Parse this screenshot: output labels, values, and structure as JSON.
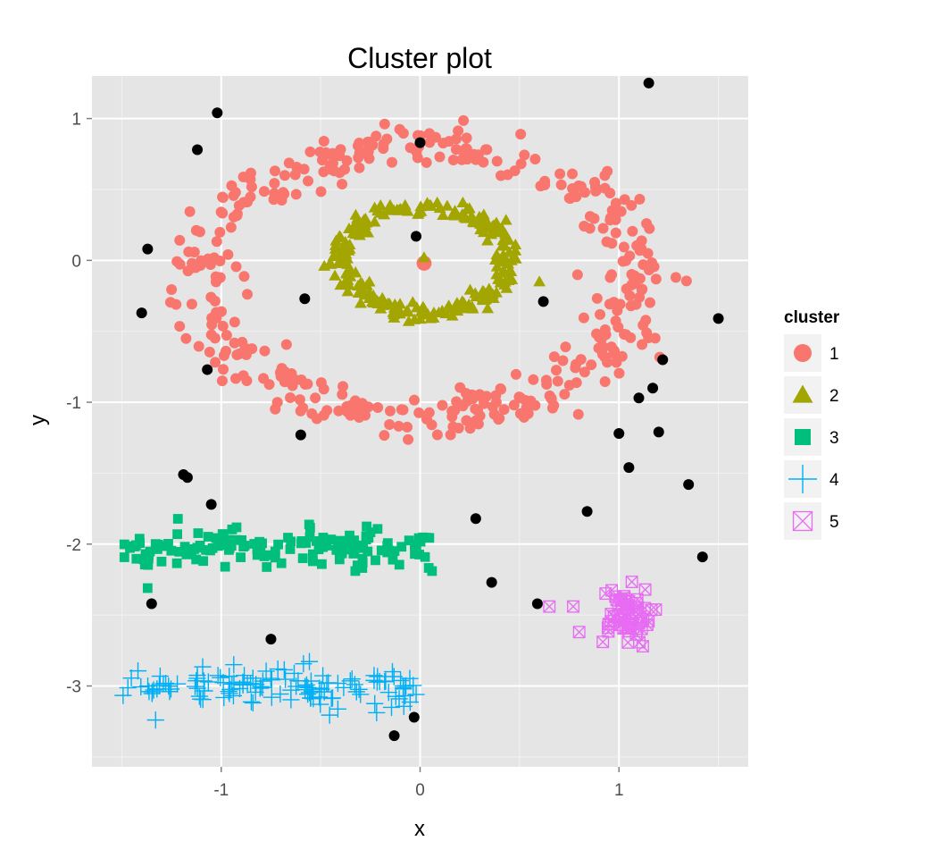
{
  "chart_data": {
    "type": "scatter",
    "title": "Cluster plot",
    "xlabel": "x",
    "ylabel": "y",
    "xlim": [
      -1.65,
      1.65
    ],
    "ylim": [
      -3.57,
      1.3
    ],
    "xticks": [
      "-1",
      "0",
      "1"
    ],
    "xtick_values": [
      -1,
      0,
      1
    ],
    "yticks": [
      "1",
      "0",
      "-1",
      "-2",
      "-3"
    ],
    "ytick_values": [
      1,
      0,
      -1,
      -2,
      -3
    ],
    "grid": true,
    "panel_background": "#e5e5e5",
    "legend": {
      "title": "cluster",
      "placement": "right",
      "entries": [
        {
          "label": "1",
          "color": "#f8766d",
          "shape": "circle"
        },
        {
          "label": "2",
          "color": "#a3a500",
          "shape": "triangle"
        },
        {
          "label": "3",
          "color": "#00bf7d",
          "shape": "square"
        },
        {
          "label": "4",
          "color": "#00b0f6",
          "shape": "plus"
        },
        {
          "label": "5",
          "color": "#e76bf3",
          "shape": "boxed-x"
        }
      ]
    },
    "noise": {
      "color": "#000000",
      "shape": "circle",
      "points": [
        [
          -1.02,
          1.04
        ],
        [
          -1.12,
          0.78
        ],
        [
          -1.37,
          0.08
        ],
        [
          -1.4,
          -0.37
        ],
        [
          -1.07,
          -0.77
        ],
        [
          -0.58,
          -0.27
        ],
        [
          0.0,
          0.83
        ],
        [
          -0.02,
          0.17
        ],
        [
          0.62,
          -0.29
        ],
        [
          1.15,
          1.25
        ],
        [
          1.5,
          -0.41
        ],
        [
          1.22,
          -0.7
        ],
        [
          1.1,
          -0.97
        ],
        [
          1.17,
          -0.9
        ],
        [
          1.0,
          -1.22
        ],
        [
          1.2,
          -1.21
        ],
        [
          1.05,
          -1.46
        ],
        [
          1.35,
          -1.58
        ],
        [
          0.84,
          -1.77
        ],
        [
          1.42,
          -2.09
        ],
        [
          -0.6,
          -1.23
        ],
        [
          -1.19,
          -1.51
        ],
        [
          -1.17,
          -1.53
        ],
        [
          -1.05,
          -1.72
        ],
        [
          -1.35,
          -2.42
        ],
        [
          0.28,
          -1.82
        ],
        [
          0.36,
          -2.27
        ],
        [
          0.59,
          -2.42
        ],
        [
          -0.75,
          -2.67
        ],
        [
          -0.03,
          -3.22
        ],
        [
          -0.13,
          -3.35
        ]
      ]
    },
    "series": [
      {
        "name": "1",
        "color": "#f8766d",
        "shape": "circle",
        "model": "ring",
        "center": [
          0.0,
          -0.15
        ],
        "radius": [
          1.1,
          0.95
        ],
        "n": 420,
        "extra_points": [
          [
            0.02,
            -0.02
          ]
        ]
      },
      {
        "name": "2",
        "color": "#a3a500",
        "shape": "triangle",
        "model": "ring",
        "center": [
          0.02,
          0.0
        ],
        "radius": [
          0.42,
          0.37
        ],
        "n": 260,
        "extra_points": [
          [
            0.02,
            0.02
          ],
          [
            0.6,
            -0.15
          ]
        ]
      },
      {
        "name": "3",
        "color": "#00bf7d",
        "shape": "square",
        "model": "band",
        "x_range": [
          -1.5,
          0.05
        ],
        "y_center": -2.03,
        "y_spread": 0.11,
        "n": 150,
        "extra_points": [
          [
            -1.37,
            -2.31
          ],
          [
            0.06,
            -2.19
          ]
        ]
      },
      {
        "name": "4",
        "color": "#00b0f6",
        "shape": "plus",
        "model": "band",
        "x_range": [
          -1.5,
          -0.02
        ],
        "y_center": -3.0,
        "y_spread": 0.12,
        "n": 130,
        "extra_points": [
          [
            -1.33,
            -3.24
          ],
          [
            -0.02,
            -3.06
          ]
        ]
      },
      {
        "name": "5",
        "color": "#e76bf3",
        "shape": "boxed-x",
        "model": "blob",
        "center": [
          1.02,
          -2.5
        ],
        "spread": [
          0.07,
          0.1
        ],
        "n": 60,
        "extra_points": [
          [
            0.65,
            -2.44
          ],
          [
            0.77,
            -2.44
          ],
          [
            0.8,
            -2.62
          ],
          [
            1.12,
            -2.72
          ]
        ]
      }
    ]
  }
}
